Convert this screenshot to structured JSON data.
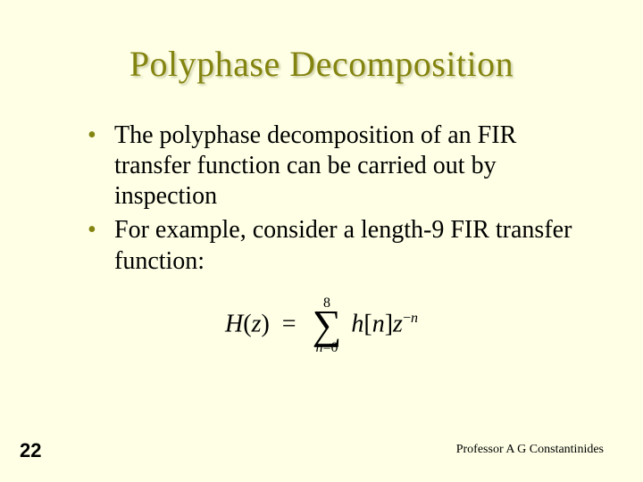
{
  "slide": {
    "title": "Polyphase Decomposition",
    "title_color": "#848410",
    "background_color": "#feffe5",
    "bullets": [
      "The polyphase decomposition of an FIR transfer function can be carried out by inspection",
      "For example, consider a length-9 FIR transfer function:"
    ],
    "equation": {
      "lhs_func": "H",
      "lhs_arg": "z",
      "sum_lower": "n=0",
      "sum_upper": "8",
      "term_func": "h",
      "term_arg": "n",
      "base": "z",
      "exponent": "−n"
    },
    "page_number": "22",
    "footer": "Professor A G Constantinides"
  }
}
